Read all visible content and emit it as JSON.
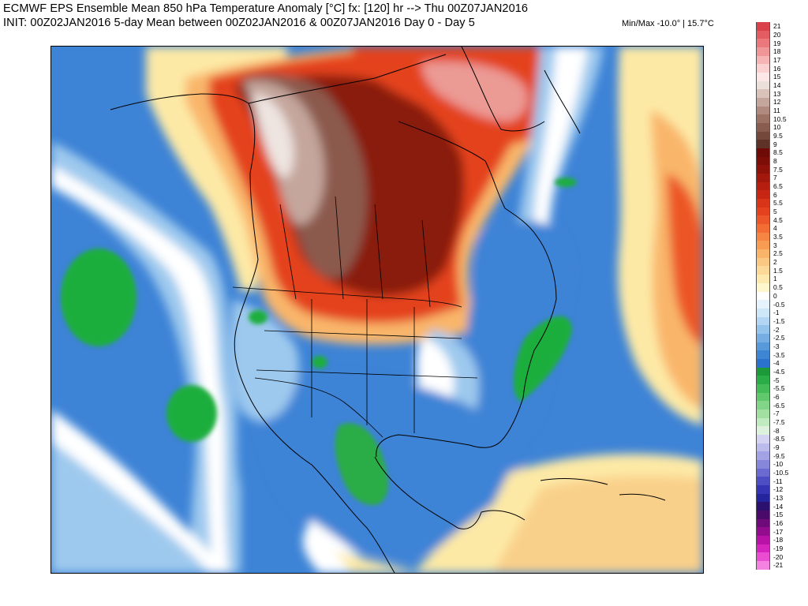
{
  "header": {
    "title_line1": "ECMWF EPS Ensemble Mean 850 hPa Temperature Anomaly [°C] fx: [120] hr --> Thu 00Z07JAN2016",
    "title_line2": "INIT: 00Z02JAN2016 5-day Mean between 00Z02JAN2016 & 00Z07JAN2016    Day 0 - Day 5",
    "minmax": "Min/Max -10.0° | 15.7°C"
  },
  "map": {
    "variable": "850 hPa temperature anomaly",
    "units": "°C",
    "region": "North America",
    "min": -10.0,
    "max": 15.7,
    "colors": {
      "ocean_cold": "#3d83d6",
      "cool_light": "#9ec9ee",
      "near_zero": "#ffffff",
      "warm_light": "#fde9a6",
      "warm": "#f9b66a",
      "hot": "#e4421f",
      "very_hot": "#8a1a0a",
      "extreme": "#8c5a4e",
      "peak": "#eee4e0",
      "cold_green": "#1fae3e"
    }
  },
  "colorbar": {
    "entries": [
      {
        "label": "21",
        "color": "#d9424a"
      },
      {
        "label": "20",
        "color": "#e25c62"
      },
      {
        "label": "19",
        "color": "#ea787c"
      },
      {
        "label": "18",
        "color": "#f19698"
      },
      {
        "label": "17",
        "color": "#f6b4b5"
      },
      {
        "label": "16",
        "color": "#fad0d0"
      },
      {
        "label": "15",
        "color": "#fde6e6"
      },
      {
        "label": "14",
        "color": "#ece0da"
      },
      {
        "label": "13",
        "color": "#d8c2ba"
      },
      {
        "label": "12",
        "color": "#c4a69c"
      },
      {
        "label": "11",
        "color": "#b08a7e"
      },
      {
        "label": "10.5",
        "color": "#9c7265"
      },
      {
        "label": "10",
        "color": "#885c4e"
      },
      {
        "label": "9.5",
        "color": "#74483a"
      },
      {
        "label": "9",
        "color": "#5e3226"
      },
      {
        "label": "8.5",
        "color": "#6e0b06"
      },
      {
        "label": "8",
        "color": "#7c0e07"
      },
      {
        "label": "7.5",
        "color": "#8e1209"
      },
      {
        "label": "7",
        "color": "#a2180c"
      },
      {
        "label": "6.5",
        "color": "#b61e10"
      },
      {
        "label": "6",
        "color": "#c82614"
      },
      {
        "label": "5.5",
        "color": "#d83418"
      },
      {
        "label": "5",
        "color": "#e4421f"
      },
      {
        "label": "4.5",
        "color": "#ec5628"
      },
      {
        "label": "4",
        "color": "#f26c34"
      },
      {
        "label": "3.5",
        "color": "#f68442"
      },
      {
        "label": "3",
        "color": "#f89c52"
      },
      {
        "label": "2.5",
        "color": "#f9b46a"
      },
      {
        "label": "2",
        "color": "#fbc884"
      },
      {
        "label": "1.5",
        "color": "#fcd998"
      },
      {
        "label": "1",
        "color": "#fde9ae"
      },
      {
        "label": "0.5",
        "color": "#fef6cc"
      },
      {
        "label": "0",
        "color": "#ffffff"
      },
      {
        "label": "-0.5",
        "color": "#e6f3fc"
      },
      {
        "label": "-1",
        "color": "#cde6f8"
      },
      {
        "label": "-1.5",
        "color": "#b2d6f3"
      },
      {
        "label": "-2",
        "color": "#94c3ec"
      },
      {
        "label": "-2.5",
        "color": "#76aee4"
      },
      {
        "label": "-3",
        "color": "#5899dc"
      },
      {
        "label": "-3.5",
        "color": "#3e85d4"
      },
      {
        "label": "-4",
        "color": "#2a72cb"
      },
      {
        "label": "-4.5",
        "color": "#1c9a3a"
      },
      {
        "label": "-5",
        "color": "#2aac46"
      },
      {
        "label": "-5.5",
        "color": "#44bc58"
      },
      {
        "label": "-6",
        "color": "#62c86e"
      },
      {
        "label": "-6.5",
        "color": "#82d488"
      },
      {
        "label": "-7",
        "color": "#a2e0a2"
      },
      {
        "label": "-7.5",
        "color": "#c0eac0"
      },
      {
        "label": "-8",
        "color": "#dcf2dc"
      },
      {
        "label": "-8.5",
        "color": "#d4d4f2"
      },
      {
        "label": "-9",
        "color": "#bcbcec"
      },
      {
        "label": "-9.5",
        "color": "#a2a2e4"
      },
      {
        "label": "-10",
        "color": "#8686da"
      },
      {
        "label": "-10.5",
        "color": "#6a6ad0"
      },
      {
        "label": "-11",
        "color": "#4e4ec4"
      },
      {
        "label": "-12",
        "color": "#3434b4"
      },
      {
        "label": "-13",
        "color": "#24249c"
      },
      {
        "label": "-14",
        "color": "#2c1070"
      },
      {
        "label": "-15",
        "color": "#4a0a6a"
      },
      {
        "label": "-16",
        "color": "#6e0a7a"
      },
      {
        "label": "-17",
        "color": "#940c8e"
      },
      {
        "label": "-18",
        "color": "#b812a6"
      },
      {
        "label": "-19",
        "color": "#d624be"
      },
      {
        "label": "-20",
        "color": "#ea4cd2"
      },
      {
        "label": "-21",
        "color": "#f482e0"
      }
    ]
  }
}
